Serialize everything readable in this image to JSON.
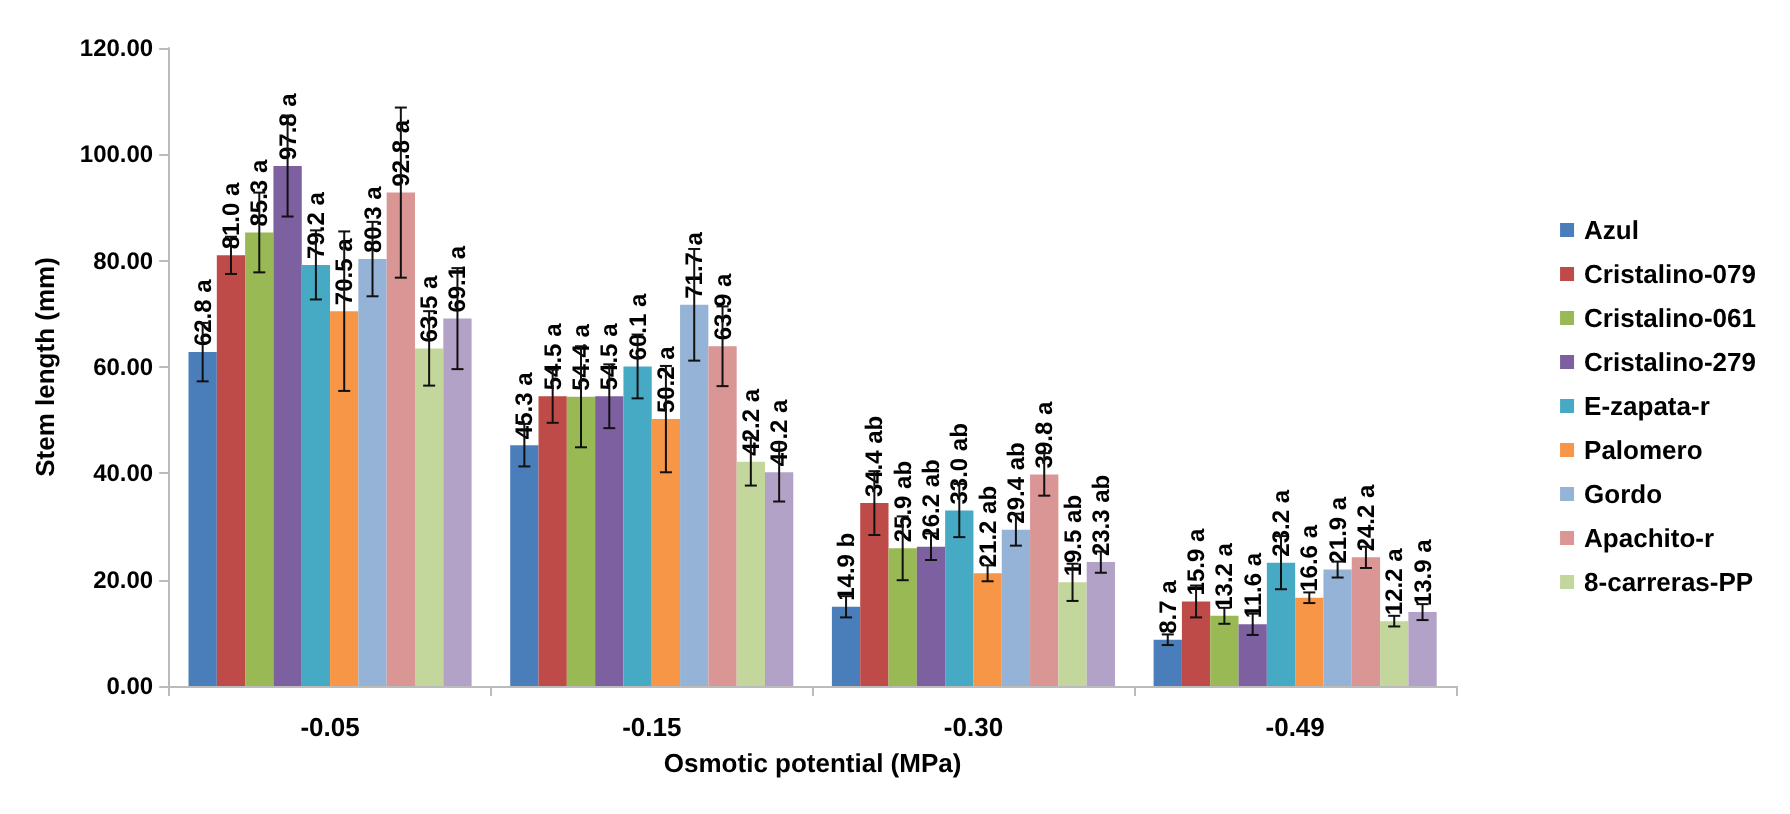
{
  "chart_data": {
    "type": "bar",
    "xlabel": "Osmotic potential (MPa)",
    "ylabel": "Stem length (mm)",
    "categories": [
      "-0.05",
      "-0.15",
      "-0.30",
      "-0.49"
    ],
    "ylim": [
      0,
      120
    ],
    "yticks": [
      {
        "value": 0,
        "label": "0.00"
      },
      {
        "value": 20,
        "label": "20.00"
      },
      {
        "value": 40,
        "label": "40.00"
      },
      {
        "value": 60,
        "label": "60.00"
      },
      {
        "value": 80,
        "label": "80.00"
      },
      {
        "value": 100,
        "label": "100.00"
      },
      {
        "value": 120,
        "label": "120.00"
      }
    ],
    "grid": false,
    "legend": "right",
    "series": [
      {
        "name": "Azul",
        "color": "#4a7ebb",
        "values": [
          62.8,
          45.3,
          14.9,
          8.7
        ],
        "errors": [
          5.5,
          4,
          2,
          1
        ],
        "value_labels": [
          "62.8 a",
          "45.3 a",
          "14.9 b",
          "8.7 a"
        ]
      },
      {
        "name": "Cristalino-079",
        "color": "#be4b48",
        "values": [
          81.0,
          54.5,
          34.4,
          15.9
        ],
        "errors": [
          3.5,
          5,
          6,
          3
        ],
        "value_labels": [
          "81.0 a",
          "54.5 a",
          "34.4 ab",
          "15.9 a"
        ]
      },
      {
        "name": "Cristalino-061",
        "color": "#98b954",
        "values": [
          85.3,
          54.4,
          25.9,
          13.2
        ],
        "errors": [
          7.5,
          9.5,
          6,
          1.5
        ],
        "value_labels": [
          "85.3 a",
          "54.4 a",
          "25.9 ab",
          "13.2 a"
        ]
      },
      {
        "name": "Cristalino-279",
        "color": "#7d60a0",
        "values": [
          97.8,
          54.5,
          26.2,
          11.6
        ],
        "errors": [
          9.5,
          6,
          2.5,
          2
        ],
        "value_labels": [
          "97.8 a",
          "54.5 a",
          "26.2 ab",
          "11.6 a"
        ]
      },
      {
        "name": "E-zapata-r",
        "color": "#46aac5",
        "values": [
          79.2,
          60.1,
          33.0,
          23.2
        ],
        "errors": [
          6.5,
          6,
          5,
          5
        ],
        "value_labels": [
          "79.2 a",
          "60.1 a",
          "33.0 ab",
          "23.2 a"
        ]
      },
      {
        "name": "Palomero",
        "color": "#f79646",
        "values": [
          70.5,
          50.2,
          21.2,
          16.6
        ],
        "errors": [
          15,
          10,
          1.5,
          1
        ],
        "value_labels": [
          "70.5 a",
          "50.2 a",
          "21.2 ab",
          "16.6 a"
        ]
      },
      {
        "name": "Gordo",
        "color": "#95b3d7",
        "values": [
          80.3,
          71.7,
          29.4,
          21.9
        ],
        "errors": [
          7,
          10.5,
          3,
          1.5
        ],
        "value_labels": [
          "80.3 a",
          "71.7 a",
          "29.4 ab",
          "21.9 a"
        ]
      },
      {
        "name": "Apachito-r",
        "color": "#d99694",
        "values": [
          92.8,
          63.9,
          39.8,
          24.2
        ],
        "errors": [
          16,
          7.5,
          4,
          2
        ],
        "value_labels": [
          "92.8 a",
          "63.9 a",
          "39.8 a",
          "24.2 a"
        ]
      },
      {
        "name": "8-carreras-PP",
        "color": "#c3d69b",
        "values": [
          63.5,
          42.2,
          19.5,
          12.2
        ],
        "errors": [
          7,
          4.5,
          3.5,
          1
        ],
        "value_labels": [
          "63.5 a",
          "42.2 a",
          "19.5 ab",
          "12.2 a"
        ]
      },
      {
        "color": "#b3a2c7",
        "values": [
          69.1,
          40.2,
          23.3,
          13.9
        ],
        "errors": [
          9.5,
          5.5,
          2,
          1.5
        ],
        "value_labels": [
          "69.1 a",
          "40.2 a",
          "23.3 ab",
          "13.9 a"
        ]
      }
    ]
  }
}
